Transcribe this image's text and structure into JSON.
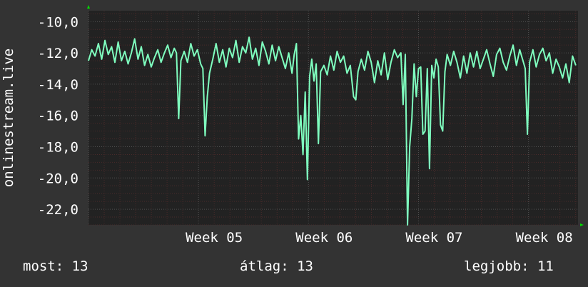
{
  "chart_data": {
    "type": "line",
    "ylabel": "onlinestream.live",
    "ylim": [
      -23,
      -9.3
    ],
    "y_ticks": [
      {
        "value": -10,
        "label": "-10,0"
      },
      {
        "value": -12,
        "label": "-12,0"
      },
      {
        "value": -14,
        "label": "-14,0"
      },
      {
        "value": -16,
        "label": "-16,0"
      },
      {
        "value": -18,
        "label": "-18,0"
      },
      {
        "value": -20,
        "label": "-20,0"
      },
      {
        "value": -22,
        "label": "-22,0"
      }
    ],
    "x_range_weeks": [
      4.0,
      8.45
    ],
    "x_ticks": [
      {
        "value": 5,
        "label": "Week 05"
      },
      {
        "value": 6,
        "label": "Week 06"
      },
      {
        "value": 7,
        "label": "Week 07"
      },
      {
        "value": 8,
        "label": "Week 08"
      }
    ],
    "grid": true,
    "series": [
      {
        "color": "#7fffbf",
        "points": [
          [
            4.0,
            -12.5
          ],
          [
            4.03,
            -11.8
          ],
          [
            4.06,
            -12.2
          ],
          [
            4.09,
            -11.4
          ],
          [
            4.12,
            -12.4
          ],
          [
            4.15,
            -11.2
          ],
          [
            4.18,
            -12.1
          ],
          [
            4.21,
            -11.6
          ],
          [
            4.24,
            -12.6
          ],
          [
            4.27,
            -11.3
          ],
          [
            4.3,
            -12.5
          ],
          [
            4.33,
            -11.9
          ],
          [
            4.36,
            -12.7
          ],
          [
            4.39,
            -12.0
          ],
          [
            4.42,
            -11.1
          ],
          [
            4.45,
            -12.4
          ],
          [
            4.48,
            -11.6
          ],
          [
            4.51,
            -12.8
          ],
          [
            4.54,
            -12.1
          ],
          [
            4.57,
            -12.9
          ],
          [
            4.6,
            -12.3
          ],
          [
            4.63,
            -11.8
          ],
          [
            4.66,
            -12.6
          ],
          [
            4.69,
            -12.0
          ],
          [
            4.72,
            -11.5
          ],
          [
            4.75,
            -12.3
          ],
          [
            4.78,
            -11.7
          ],
          [
            4.8,
            -12.0
          ],
          [
            4.82,
            -16.2
          ],
          [
            4.84,
            -12.5
          ],
          [
            4.87,
            -11.9
          ],
          [
            4.9,
            -12.6
          ],
          [
            4.93,
            -11.4
          ],
          [
            4.96,
            -12.2
          ],
          [
            4.99,
            -11.8
          ],
          [
            5.02,
            -12.7
          ],
          [
            5.04,
            -13.0
          ],
          [
            5.06,
            -17.3
          ],
          [
            5.08,
            -14.8
          ],
          [
            5.1,
            -13.3
          ],
          [
            5.13,
            -12.4
          ],
          [
            5.16,
            -11.4
          ],
          [
            5.19,
            -12.6
          ],
          [
            5.22,
            -11.8
          ],
          [
            5.25,
            -12.9
          ],
          [
            5.28,
            -11.7
          ],
          [
            5.31,
            -12.3
          ],
          [
            5.34,
            -11.2
          ],
          [
            5.37,
            -12.6
          ],
          [
            5.4,
            -11.6
          ],
          [
            5.43,
            -12.0
          ],
          [
            5.46,
            -11.0
          ],
          [
            5.49,
            -12.4
          ],
          [
            5.52,
            -11.7
          ],
          [
            5.55,
            -12.8
          ],
          [
            5.58,
            -11.3
          ],
          [
            5.61,
            -11.9
          ],
          [
            5.64,
            -12.7
          ],
          [
            5.67,
            -11.5
          ],
          [
            5.7,
            -12.5
          ],
          [
            5.73,
            -11.6
          ],
          [
            5.76,
            -12.3
          ],
          [
            5.79,
            -13.0
          ],
          [
            5.82,
            -12.0
          ],
          [
            5.85,
            -13.3
          ],
          [
            5.87,
            -12.1
          ],
          [
            5.89,
            -11.4
          ],
          [
            5.91,
            -17.5
          ],
          [
            5.93,
            -16.0
          ],
          [
            5.95,
            -18.5
          ],
          [
            5.97,
            -14.5
          ],
          [
            5.99,
            -20.1
          ],
          [
            6.01,
            -13.5
          ],
          [
            6.03,
            -12.4
          ],
          [
            6.05,
            -13.8
          ],
          [
            6.07,
            -12.7
          ],
          [
            6.09,
            -17.8
          ],
          [
            6.11,
            -13.2
          ],
          [
            6.14,
            -12.8
          ],
          [
            6.17,
            -13.4
          ],
          [
            6.2,
            -12.2
          ],
          [
            6.23,
            -13.1
          ],
          [
            6.26,
            -11.9
          ],
          [
            6.29,
            -12.6
          ],
          [
            6.32,
            -12.2
          ],
          [
            6.35,
            -13.3
          ],
          [
            6.38,
            -12.8
          ],
          [
            6.41,
            -14.8
          ],
          [
            6.43,
            -15.0
          ],
          [
            6.45,
            -13.2
          ],
          [
            6.48,
            -12.4
          ],
          [
            6.51,
            -13.1
          ],
          [
            6.54,
            -11.9
          ],
          [
            6.57,
            -12.6
          ],
          [
            6.6,
            -13.9
          ],
          [
            6.63,
            -12.5
          ],
          [
            6.66,
            -13.4
          ],
          [
            6.69,
            -12.0
          ],
          [
            6.72,
            -13.7
          ],
          [
            6.75,
            -12.6
          ],
          [
            6.78,
            -11.8
          ],
          [
            6.81,
            -12.3
          ],
          [
            6.84,
            -12.0
          ],
          [
            6.86,
            -15.3
          ],
          [
            6.88,
            -12.1
          ],
          [
            6.9,
            -23.0
          ],
          [
            6.92,
            -18.0
          ],
          [
            6.94,
            -16.2
          ],
          [
            6.96,
            -12.7
          ],
          [
            6.98,
            -14.8
          ],
          [
            7.0,
            -13.0
          ],
          [
            7.02,
            -12.9
          ],
          [
            7.04,
            -17.2
          ],
          [
            7.06,
            -17.0
          ],
          [
            7.08,
            -13.0
          ],
          [
            7.1,
            -19.4
          ],
          [
            7.12,
            -12.8
          ],
          [
            7.14,
            -13.6
          ],
          [
            7.16,
            -12.4
          ],
          [
            7.18,
            -12.9
          ],
          [
            7.2,
            -16.6
          ],
          [
            7.22,
            -17.0
          ],
          [
            7.24,
            -13.2
          ],
          [
            7.26,
            -12.1
          ],
          [
            7.29,
            -12.8
          ],
          [
            7.32,
            -11.9
          ],
          [
            7.35,
            -12.6
          ],
          [
            7.38,
            -13.6
          ],
          [
            7.41,
            -12.2
          ],
          [
            7.44,
            -13.3
          ],
          [
            7.47,
            -12.0
          ],
          [
            7.5,
            -12.9
          ],
          [
            7.53,
            -11.9
          ],
          [
            7.56,
            -13.0
          ],
          [
            7.59,
            -12.4
          ],
          [
            7.62,
            -11.8
          ],
          [
            7.65,
            -12.7
          ],
          [
            7.68,
            -13.5
          ],
          [
            7.71,
            -12.1
          ],
          [
            7.74,
            -11.7
          ],
          [
            7.77,
            -12.6
          ],
          [
            7.8,
            -13.1
          ],
          [
            7.83,
            -12.2
          ],
          [
            7.86,
            -11.5
          ],
          [
            7.89,
            -12.8
          ],
          [
            7.92,
            -11.8
          ],
          [
            7.95,
            -12.5
          ],
          [
            7.97,
            -13.0
          ],
          [
            7.99,
            -17.2
          ],
          [
            8.01,
            -12.6
          ],
          [
            8.04,
            -11.8
          ],
          [
            8.07,
            -12.9
          ],
          [
            8.1,
            -12.1
          ],
          [
            8.13,
            -11.7
          ],
          [
            8.16,
            -12.5
          ],
          [
            8.19,
            -12.0
          ],
          [
            8.22,
            -13.3
          ],
          [
            8.25,
            -12.4
          ],
          [
            8.28,
            -12.9
          ],
          [
            8.31,
            -13.6
          ],
          [
            8.34,
            -12.7
          ],
          [
            8.37,
            -13.9
          ],
          [
            8.4,
            -12.2
          ],
          [
            8.43,
            -12.8
          ]
        ]
      }
    ],
    "colors": {
      "background": "#333333",
      "plot_background": "#222222",
      "grid_major": "#505050",
      "grid_minor": "#4a2a2a",
      "line": "#7fffbf",
      "axis_arrow": "#00dd00"
    }
  },
  "footer": {
    "most": "most: 13",
    "avg": "átlag: 13",
    "best": "legjobb: 11"
  }
}
